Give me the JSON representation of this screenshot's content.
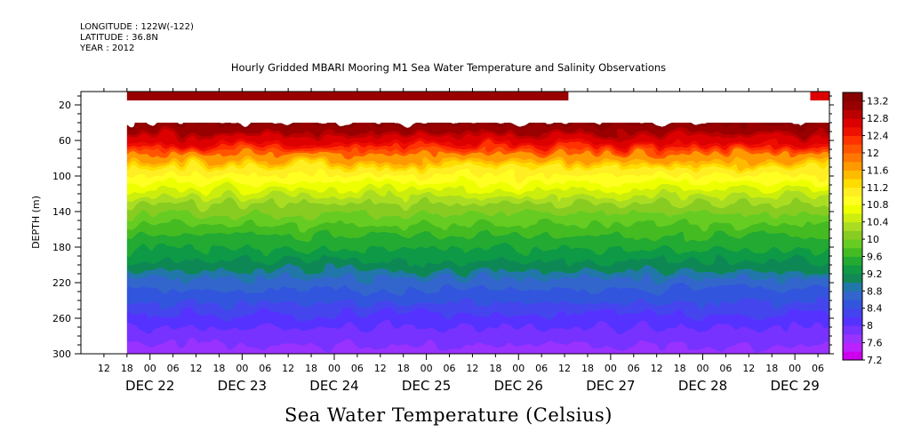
{
  "header": {
    "longitude": "LONGITUDE : 122W(-122)",
    "latitude": "LATITUDE : 36.8N",
    "year": "YEAR : 2012"
  },
  "chart_data": {
    "type": "heatmap",
    "title": "Hourly Gridded MBARI Mooring M1 Sea Water Temperature and Salinity Observations",
    "xlabel": "",
    "ylabel": "DEPTH (m)",
    "colorbar_title": "Sea Water Temperature (Celsius)",
    "x_range": [
      "2012-12-21 06:00",
      "2012-12-29 09:00"
    ],
    "y_range": [
      300,
      5
    ],
    "y_reversed": true,
    "x_hour_ticks": [
      "12",
      "18",
      "00",
      "06",
      "12",
      "18",
      "00",
      "06",
      "12",
      "18",
      "00",
      "06",
      "12",
      "18",
      "00",
      "06",
      "12",
      "18",
      "00",
      "06",
      "12",
      "18",
      "00",
      "06",
      "12",
      "18",
      "00",
      "06",
      "12",
      "18",
      "00",
      "06"
    ],
    "x_day_labels": [
      "DEC 22",
      "DEC 23",
      "DEC 24",
      "DEC 25",
      "DEC 26",
      "DEC 27",
      "DEC 28",
      "DEC 29"
    ],
    "y_ticks": [
      20,
      60,
      100,
      140,
      180,
      220,
      260,
      300
    ],
    "colorbar_levels": [
      7.2,
      7.4,
      7.6,
      7.8,
      8.0,
      8.2,
      8.4,
      8.6,
      8.8,
      9.0,
      9.2,
      9.4,
      9.6,
      9.8,
      10.0,
      10.2,
      10.4,
      10.6,
      10.8,
      11.0,
      11.2,
      11.4,
      11.6,
      11.8,
      12.0,
      12.2,
      12.4,
      12.6,
      12.8,
      13.0,
      13.2,
      13.4
    ],
    "colorbar_labels": [
      "13.2",
      "12.8",
      "12.4",
      "12",
      "11.6",
      "11.2",
      "10.8",
      "10.4",
      "10",
      "9.6",
      "9.2",
      "8.8",
      "8.4",
      "8",
      "7.6",
      "7.2"
    ],
    "colors": [
      "#cc00ee",
      "#bb22ff",
      "#9933ff",
      "#7733ff",
      "#5533ff",
      "#4444ee",
      "#3355dd",
      "#3366cc",
      "#2277aa",
      "#118855",
      "#119944",
      "#22aa33",
      "#44bb22",
      "#66cc22",
      "#88cc22",
      "#aadd22",
      "#ccee11",
      "#eeff00",
      "#ffff22",
      "#ffee22",
      "#ffdd00",
      "#ffbb00",
      "#ff9900",
      "#ff7700",
      "#ff5500",
      "#ff3300",
      "#ee1100",
      "#dd0000",
      "#bb0000",
      "#990000",
      "#880000"
    ],
    "surface_bands": [
      {
        "start": "2012-12-21 18:00",
        "end": "2012-12-26 13:00",
        "depth_top": 5,
        "depth_bottom": 15,
        "value": 13.1
      },
      {
        "start": "2012-12-29 04:00",
        "end": "2012-12-29 09:00",
        "depth_top": 5,
        "depth_bottom": 15,
        "value": 12.7
      }
    ],
    "profile_depth_top": 40,
    "profile_depth_bottom": 300,
    "data_start": "2012-12-21 18:00",
    "data_end": "2012-12-29 09:00"
  }
}
